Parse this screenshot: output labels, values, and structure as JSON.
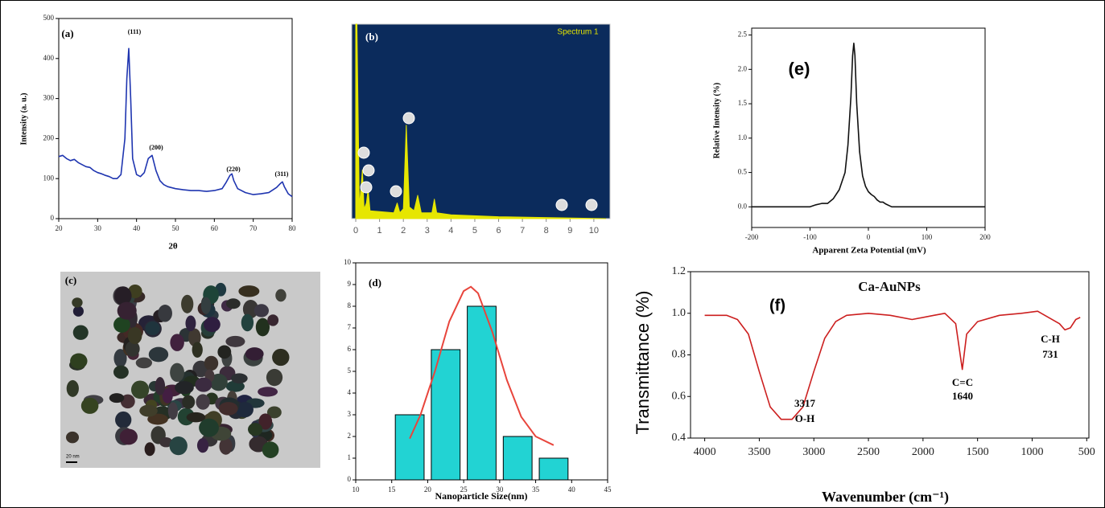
{
  "chart_data": [
    {
      "type": "line",
      "label": "(a)",
      "xlabel": "2θ",
      "ylabel": "Intensity (a. u.)",
      "xlim": [
        20,
        80
      ],
      "ylim": [
        0,
        500
      ],
      "xticks": [
        20,
        30,
        40,
        50,
        60,
        70,
        80
      ],
      "yticks": [
        0,
        100,
        200,
        300,
        400,
        500
      ],
      "annotations": [
        "(111)",
        "(200)",
        "(220)",
        "(311)"
      ],
      "series": [
        {
          "color": "#1f35b0",
          "x": [
            20,
            21,
            22,
            23,
            24,
            25,
            26,
            27,
            28,
            29,
            30,
            31,
            32,
            33,
            34,
            35,
            36,
            37,
            37.5,
            38,
            38.5,
            39,
            40,
            41,
            42,
            43,
            44,
            45,
            46,
            47,
            48,
            50,
            52,
            54,
            56,
            58,
            60,
            62,
            63,
            64,
            64.5,
            65,
            66,
            68,
            70,
            72,
            74,
            76,
            77,
            77.5,
            78,
            79,
            80
          ],
          "values": [
            155,
            158,
            150,
            145,
            148,
            140,
            135,
            130,
            128,
            120,
            115,
            112,
            108,
            105,
            100,
            100,
            110,
            200,
            350,
            425,
            300,
            150,
            110,
            105,
            115,
            150,
            158,
            120,
            95,
            85,
            80,
            75,
            72,
            70,
            70,
            68,
            70,
            75,
            90,
            108,
            112,
            95,
            75,
            65,
            60,
            62,
            65,
            78,
            88,
            92,
            80,
            62,
            55
          ]
        }
      ]
    },
    {
      "type": "line",
      "label": "(b)",
      "title": "Spectrum 1",
      "background": "#0b2b5c",
      "xlim": [
        -0.17,
        10.68
      ],
      "ylim": [
        0,
        100
      ],
      "xticks": [
        0,
        1,
        2,
        3,
        4,
        5,
        6,
        7,
        8,
        9,
        10
      ],
      "series": [
        {
          "color": "#e6e600",
          "x": [
            0,
            0.05,
            0.15,
            0.28,
            0.35,
            0.45,
            0.52,
            0.6,
            1.6,
            1.74,
            1.85,
            2.0,
            2.12,
            2.25,
            2.45,
            2.6,
            2.75,
            3.2,
            3.3,
            3.4,
            4.0,
            6.0,
            10.5
          ],
          "values": [
            100,
            100,
            6,
            25,
            5,
            8,
            15,
            4,
            3,
            8,
            3,
            5,
            48,
            6,
            4,
            12,
            3,
            3,
            10,
            3,
            2,
            1,
            0
          ]
        }
      ]
    },
    {
      "type": "image",
      "label": "(c)",
      "scale_bar": "20 nm"
    },
    {
      "type": "bar",
      "label": "(d)",
      "xlabel": "Nanoparticle Size(nm)",
      "xlim": [
        10,
        45
      ],
      "ylim": [
        0,
        10
      ],
      "xticks": [
        10,
        15,
        20,
        25,
        30,
        35,
        40,
        45
      ],
      "yticks": [
        0,
        1,
        2,
        3,
        4,
        5,
        6,
        7,
        8,
        9,
        10
      ],
      "x": [
        17.5,
        22.5,
        27.5,
        32.5,
        37.5
      ],
      "values": [
        3,
        6,
        8,
        2,
        1
      ],
      "color": "#22d3d3",
      "fit": {
        "color": "#e8453c",
        "x": [
          17.5,
          19,
          21,
          23,
          25,
          26,
          27,
          29,
          31,
          33,
          35,
          37.5
        ],
        "values": [
          1.9,
          3.0,
          5.0,
          7.3,
          8.7,
          8.9,
          8.6,
          6.8,
          4.6,
          2.9,
          2.0,
          1.6
        ]
      }
    },
    {
      "type": "line",
      "label": "(e)",
      "xlabel": "Apparent Zeta Potential (mV)",
      "ylabel": "Relative Intensity (%)",
      "xlim": [
        -200,
        200
      ],
      "ylim": [
        -0.3,
        2.6
      ],
      "xticks": [
        -200,
        -100,
        0,
        100,
        200
      ],
      "yticks": [
        {
          "value": 0,
          "label": "0.0"
        },
        0.5,
        {
          "value": 1,
          "label": "1.0"
        },
        1.5,
        {
          "value": 2,
          "label": "2.0"
        },
        2.5
      ],
      "series": [
        {
          "color": "#111111",
          "x": [
            -200,
            -100,
            -90,
            -80,
            -70,
            -60,
            -50,
            -40,
            -35,
            -30,
            -27,
            -25,
            -23,
            -20,
            -15,
            -10,
            -5,
            0,
            5,
            10,
            15,
            20,
            25,
            30,
            40,
            200
          ],
          "values": [
            0,
            0,
            0.03,
            0.05,
            0.05,
            0.12,
            0.25,
            0.5,
            0.9,
            1.6,
            2.2,
            2.38,
            2.2,
            1.5,
            0.8,
            0.45,
            0.3,
            0.22,
            0.18,
            0.15,
            0.1,
            0.07,
            0.07,
            0.04,
            0,
            0
          ]
        }
      ]
    },
    {
      "type": "line",
      "label": "(f)",
      "title": "Ca-AuNPs",
      "xlabel": "Wavenumber (cm⁻¹)",
      "ylabel": "Transmittance (%)",
      "xlim": [
        4130,
        480
      ],
      "ylim": [
        0.4,
        1.2
      ],
      "xticks": [
        4000,
        3500,
        3000,
        2500,
        2000,
        1500,
        1000,
        500
      ],
      "yticks": [
        0.4,
        0.6,
        0.8,
        {
          "value": 1,
          "label": "1.0"
        },
        1.2
      ],
      "annotations": [
        "3317",
        "O-H",
        "C=C",
        "1640",
        "C-H",
        "731"
      ],
      "series": [
        {
          "color": "#cc1f1f",
          "x": [
            4000,
            3800,
            3700,
            3600,
            3500,
            3400,
            3300,
            3200,
            3100,
            3000,
            2900,
            2800,
            2700,
            2500,
            2300,
            2100,
            1900,
            1800,
            1700,
            1640,
            1600,
            1500,
            1300,
            1100,
            950,
            850,
            750,
            700,
            650,
            600,
            560
          ],
          "values": [
            0.99,
            0.99,
            0.97,
            0.9,
            0.72,
            0.55,
            0.49,
            0.49,
            0.55,
            0.72,
            0.88,
            0.96,
            0.99,
            1.0,
            0.99,
            0.97,
            0.99,
            1.0,
            0.95,
            0.73,
            0.9,
            0.96,
            0.99,
            1.0,
            1.01,
            0.98,
            0.95,
            0.92,
            0.93,
            0.97,
            0.98
          ]
        }
      ]
    }
  ]
}
